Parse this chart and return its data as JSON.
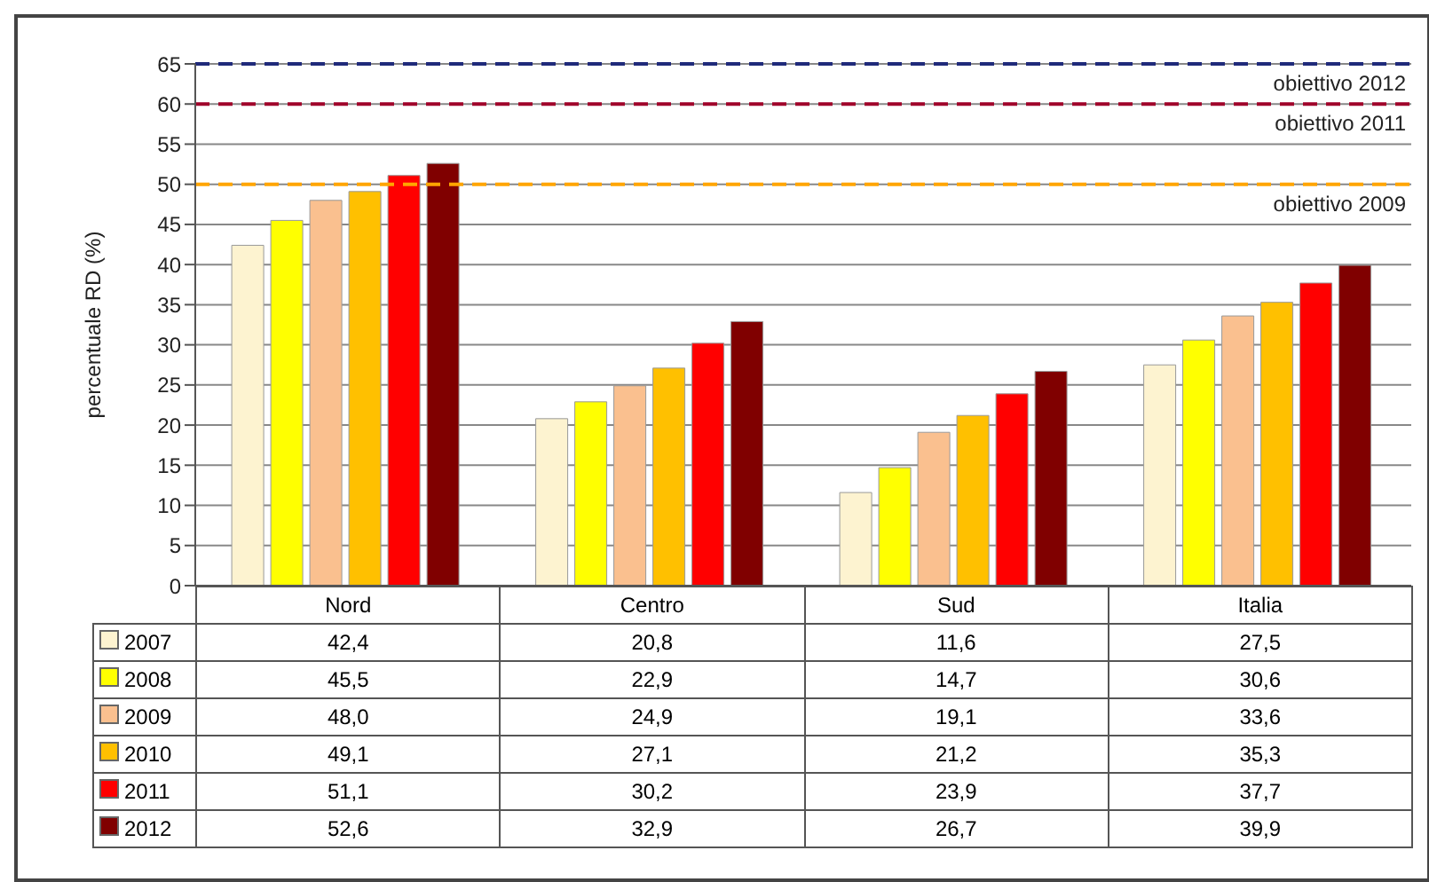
{
  "chart_data": {
    "type": "bar",
    "ylabel": "percentuale RD (%)",
    "categories": [
      "Nord",
      "Centro",
      "Sud",
      "Italia"
    ],
    "series": [
      {
        "name": "2007",
        "color": "#fdf3d0",
        "values": [
          42.4,
          20.8,
          11.6,
          27.5
        ],
        "value_labels": [
          "42,4",
          "20,8",
          "11,6",
          "27,5"
        ]
      },
      {
        "name": "2008",
        "color": "#ffff00",
        "values": [
          45.5,
          22.9,
          14.7,
          30.6
        ],
        "value_labels": [
          "45,5",
          "22,9",
          "14,7",
          "30,6"
        ]
      },
      {
        "name": "2009",
        "color": "#fac08f",
        "values": [
          48.0,
          24.9,
          19.1,
          33.6
        ],
        "value_labels": [
          "48,0",
          "24,9",
          "19,1",
          "33,6"
        ]
      },
      {
        "name": "2010",
        "color": "#ffc000",
        "values": [
          49.1,
          27.1,
          21.2,
          35.3
        ],
        "value_labels": [
          "49,1",
          "27,1",
          "21,2",
          "35,3"
        ]
      },
      {
        "name": "2011",
        "color": "#ff0000",
        "values": [
          51.1,
          30.2,
          23.9,
          37.7
        ],
        "value_labels": [
          "51,1",
          "30,2",
          "23,9",
          "37,7"
        ]
      },
      {
        "name": "2012",
        "color": "#800000",
        "values": [
          52.6,
          32.9,
          26.7,
          39.9
        ],
        "value_labels": [
          "52,6",
          "32,9",
          "26,7",
          "39,9"
        ]
      }
    ],
    "ylim": [
      0,
      65
    ],
    "yticks": [
      0,
      5,
      10,
      15,
      20,
      25,
      30,
      35,
      40,
      45,
      50,
      55,
      60,
      65
    ],
    "grid": "y",
    "legend": "bottom",
    "ref_lines": [
      {
        "axis": "y",
        "value": 65,
        "label": "obiettivo 2012",
        "color": "#1f2a7a",
        "line_style": "dashed"
      },
      {
        "axis": "y",
        "value": 60,
        "label": "obiettivo 2011",
        "color": "#a0002a",
        "line_style": "dashed"
      },
      {
        "axis": "y",
        "value": 50,
        "label": "obiettivo 2009",
        "color": "#ffa500",
        "line_style": "dashed"
      }
    ]
  }
}
